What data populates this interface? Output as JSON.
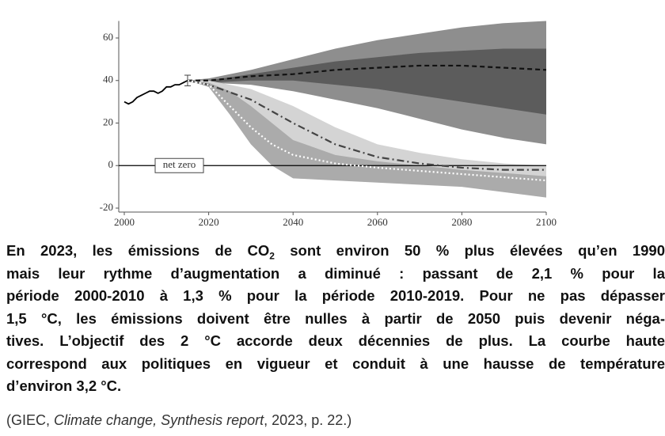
{
  "chart_data": {
    "type": "line",
    "xlim": [
      2000,
      2100
    ],
    "ylim": [
      -20,
      68
    ],
    "xticks": [
      2000,
      2020,
      2040,
      2060,
      2080,
      2100
    ],
    "yticks": [
      -20,
      0,
      20,
      40,
      60
    ],
    "annotation": "net zero",
    "bands": [
      {
        "color": "#8e8e8e",
        "x": [
          2015,
          2020,
          2030,
          2040,
          2050,
          2060,
          2070,
          2080,
          2090,
          2100
        ],
        "upper": [
          40,
          41,
          45,
          50,
          55,
          59,
          62,
          65,
          67,
          68
        ],
        "lower": [
          40,
          39,
          38,
          35,
          31,
          27,
          22,
          17,
          13,
          10
        ]
      },
      {
        "color": "#5c5c5c",
        "x": [
          2015,
          2020,
          2030,
          2040,
          2050,
          2060,
          2070,
          2080,
          2090,
          2100
        ],
        "upper": [
          40,
          40,
          43,
          46,
          49,
          51,
          53,
          54,
          55,
          55
        ],
        "lower": [
          40,
          39,
          40,
          40,
          38,
          36,
          33,
          30,
          27,
          24
        ]
      },
      {
        "color": "#d4d4d4",
        "x": [
          2015,
          2020,
          2030,
          2040,
          2050,
          2060,
          2070,
          2080,
          2090,
          2100
        ],
        "upper": [
          40,
          40,
          36,
          28,
          18,
          10,
          6,
          3,
          1,
          0
        ],
        "lower": [
          40,
          38,
          25,
          8,
          2,
          -2,
          -4,
          -6,
          -8,
          -10
        ]
      },
      {
        "color": "#ababab",
        "x": [
          2015,
          2020,
          2025,
          2030,
          2035,
          2040,
          2050,
          2060,
          2080,
          2100
        ],
        "upper": [
          40,
          39,
          35,
          28,
          20,
          12,
          5,
          2,
          -2,
          -5
        ],
        "lower": [
          40,
          37,
          24,
          10,
          0,
          -6,
          -7,
          -8,
          -10,
          -15
        ]
      }
    ],
    "series": [
      {
        "color": "#000000",
        "style": "solid",
        "x": [
          2000,
          2001,
          2002,
          2003,
          2004,
          2005,
          2006,
          2007,
          2008,
          2009,
          2010,
          2011,
          2012,
          2013,
          2014,
          2015
        ],
        "values": [
          30,
          29,
          30,
          32,
          33,
          34,
          35,
          35,
          34,
          35,
          37,
          37,
          38,
          38,
          39,
          40
        ]
      },
      {
        "color": "#111111",
        "style": "dashed",
        "x": [
          2015,
          2020,
          2030,
          2040,
          2050,
          2060,
          2070,
          2080,
          2090,
          2100
        ],
        "values": [
          40,
          40,
          42,
          43,
          45,
          46,
          47,
          47,
          46,
          45
        ]
      },
      {
        "color": "#444444",
        "style": "dashdot",
        "x": [
          2015,
          2020,
          2030,
          2040,
          2050,
          2060,
          2070,
          2080,
          2090,
          2100
        ],
        "values": [
          40,
          38,
          31,
          20,
          10,
          4,
          1,
          -1,
          -2,
          -2
        ]
      },
      {
        "color": "#ffffff",
        "style": "dotted",
        "x": [
          2015,
          2020,
          2025,
          2030,
          2035,
          2040,
          2050,
          2060,
          2080,
          2100
        ],
        "values": [
          40,
          38,
          28,
          18,
          10,
          5,
          1,
          -1,
          -4,
          -7
        ]
      }
    ],
    "error_bar": {
      "x": 2015,
      "value": 40,
      "error": 2.5
    }
  },
  "caption": {
    "lines": [
      [
        "En 2023, les émissions de CO",
        "2",
        " sont environ 50 % plus élevées qu’en 1990"
      ],
      [
        "mais leur rythme d’augmentation a diminué : passant de 2,1 % pour la"
      ],
      [
        "période 2000-2010 à 1,3 % pour la période 2010-2019. Pour ne pas dépasser"
      ],
      [
        "1,5 °C, les émissions doivent être nulles à partir de 2050 puis devenir néga-"
      ],
      [
        "tives. L’objectif des 2 °C accorde deux décennies de plus. La courbe haute"
      ],
      [
        "correspond aux politiques en vigueur et conduit à une hausse de température"
      ],
      [
        "d’environ 3,2 °C."
      ]
    ],
    "source": [
      "(GIEC, ",
      "Climate change, Synthesis report",
      ", 2023, p. 22.)"
    ]
  }
}
